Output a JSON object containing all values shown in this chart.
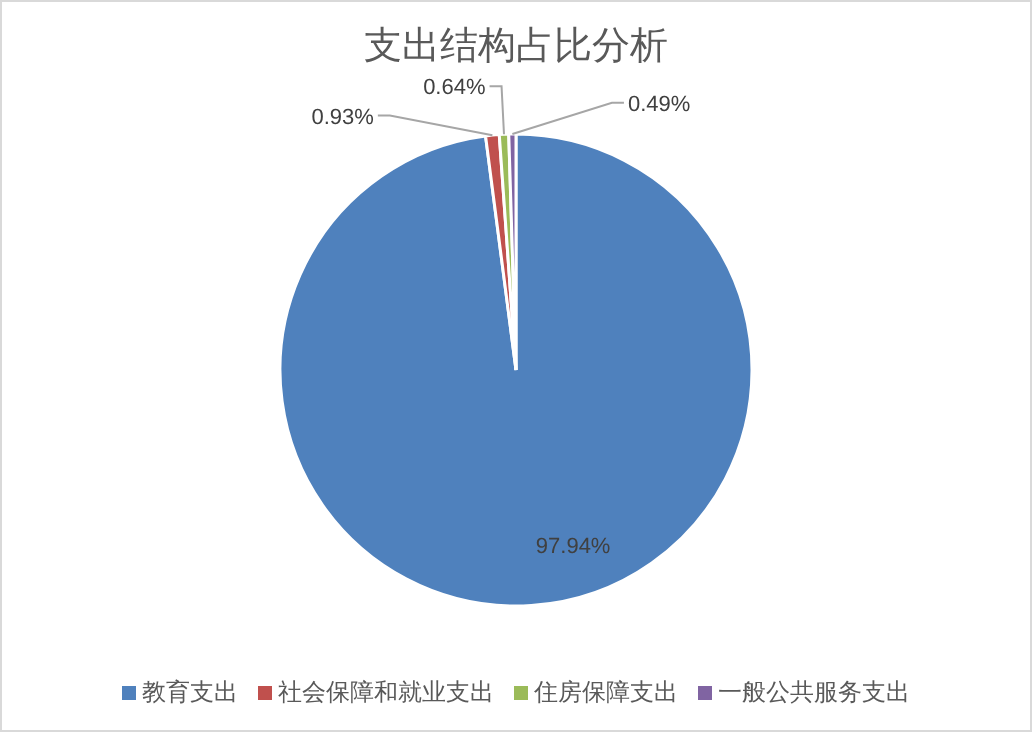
{
  "chart_data": {
    "type": "pie",
    "title": "支出结构占比分析",
    "categories": [
      "教育支出",
      "社会保障和就业支出",
      "住房保障支出",
      "一般公共服务支出"
    ],
    "values": [
      97.94,
      0.93,
      0.64,
      0.49
    ],
    "colors": [
      "#4f81bd",
      "#c0504d",
      "#9bbb59",
      "#8064a2"
    ],
    "value_labels": [
      "97.94%",
      "0.93%",
      "0.64%",
      "0.49%"
    ],
    "legend": "bottom"
  }
}
